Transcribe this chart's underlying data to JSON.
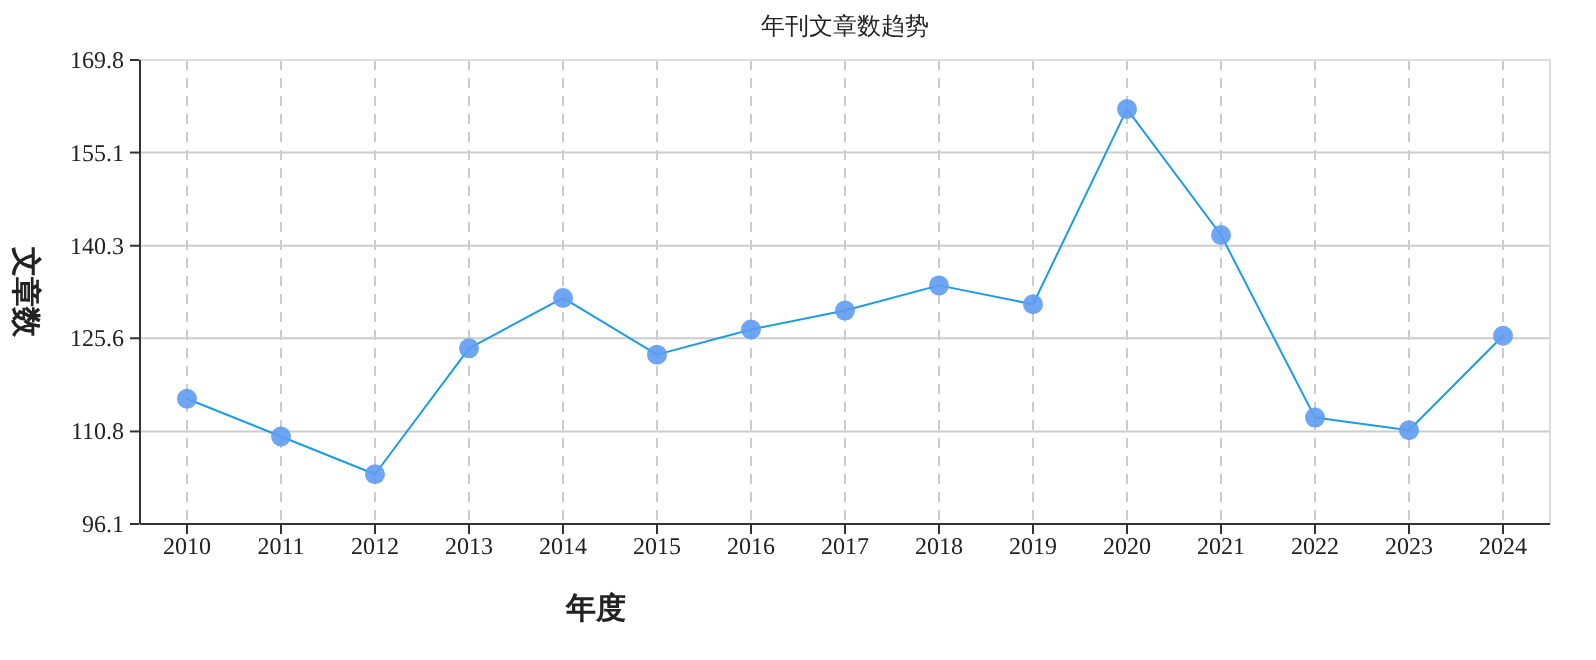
{
  "chart_data": {
    "type": "line",
    "title": "年刊文章数趋势",
    "xlabel": "年度",
    "ylabel": "文章数",
    "categories": [
      "2010",
      "2011",
      "2012",
      "2013",
      "2014",
      "2015",
      "2016",
      "2017",
      "2018",
      "2019",
      "2020",
      "2021",
      "2022",
      "2023",
      "2024"
    ],
    "series": [
      {
        "color": "#1a9ce6",
        "values": [
          116,
          110,
          104,
          124,
          132,
          123,
          127,
          130,
          134,
          131,
          162,
          142,
          113,
          111,
          126
        ]
      }
    ],
    "ylim": [
      96.1,
      169.8
    ],
    "yticks": [
      96.1,
      110.8,
      125.6,
      140.3,
      155.1,
      169.8
    ],
    "grid": true,
    "marker": "circle",
    "line_style": "solid"
  }
}
